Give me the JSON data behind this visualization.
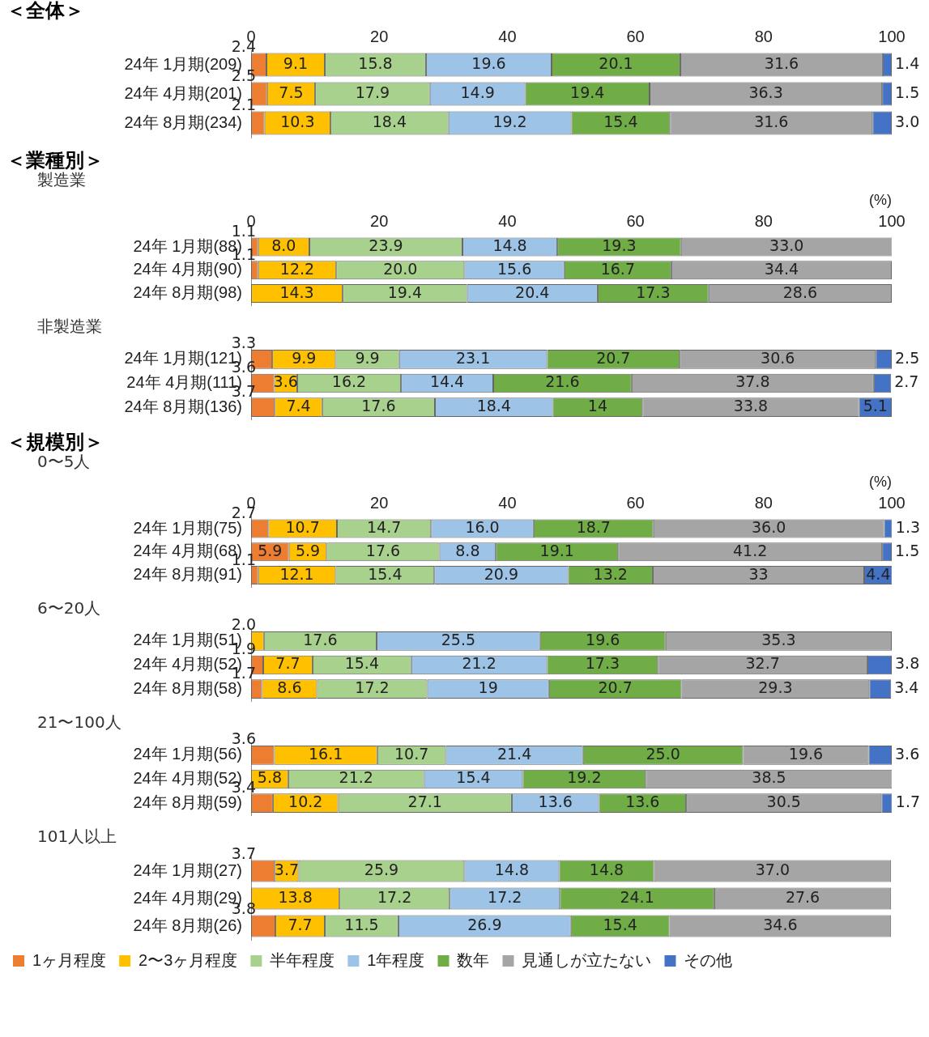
{
  "chart_data": [
    {
      "type": "bar",
      "orientation": "horizontal",
      "stacked": true,
      "title": "＜全体＞",
      "categories": [
        "24年 1月期(209)",
        "24年 4月期(201)",
        "24年 8月期(234)"
      ],
      "xlim": [
        0,
        100
      ],
      "xticks": [
        0,
        20,
        40,
        60,
        80,
        100
      ],
      "grid": false,
      "legend": false,
      "data_labels": true,
      "series": [
        {
          "color": "#ed7d31",
          "values": [
            2.4,
            2.5,
            2.1
          ],
          "value_labels": [
            "2.4",
            "2.5",
            "2.1"
          ]
        },
        {
          "color": "#ffc000",
          "values": [
            9.1,
            7.5,
            10.3
          ],
          "value_labels": [
            "9.1",
            "7.5",
            "10.3"
          ]
        },
        {
          "color": "#a9d18e",
          "values": [
            15.8,
            17.9,
            18.4
          ],
          "value_labels": [
            "15.8",
            "17.9",
            "18.4"
          ]
        },
        {
          "color": "#9dc3e6",
          "values": [
            19.6,
            14.9,
            19.2
          ],
          "value_labels": [
            "19.6",
            "14.9",
            "19.2"
          ]
        },
        {
          "color": "#70ad47",
          "values": [
            20.1,
            19.4,
            15.4
          ],
          "value_labels": [
            "20.1",
            "19.4",
            "15.4"
          ]
        },
        {
          "color": "#a5a5a5",
          "values": [
            31.6,
            36.3,
            31.6
          ],
          "value_labels": [
            "31.6",
            "36.3",
            "31.6"
          ]
        },
        {
          "color": "#4472c4",
          "values": [
            1.4,
            1.5,
            3.0
          ],
          "value_labels": [
            "1.4",
            "1.5",
            "3.0"
          ]
        }
      ]
    },
    {
      "type": "bar",
      "orientation": "horizontal",
      "stacked": true,
      "title": "＜業種別＞",
      "subtitle": "製造業",
      "xlabel": "(%)",
      "categories": [
        "24年 1月期(88)",
        "24年 4月期(90)",
        "24年 8月期(98)"
      ],
      "xlim": [
        0,
        100
      ],
      "xticks": [
        0,
        20,
        40,
        60,
        80,
        100
      ],
      "grid": false,
      "legend": false,
      "data_labels": true,
      "series": [
        {
          "color": "#ed7d31",
          "values": [
            1.1,
            1.1,
            null
          ],
          "value_labels": [
            "1.1",
            "1.1",
            null
          ]
        },
        {
          "color": "#ffc000",
          "values": [
            8.0,
            12.2,
            14.3
          ],
          "value_labels": [
            "8.0",
            "12.2",
            "14.3"
          ]
        },
        {
          "color": "#a9d18e",
          "values": [
            23.9,
            20.0,
            19.4
          ],
          "value_labels": [
            "23.9",
            "20.0",
            "19.4"
          ]
        },
        {
          "color": "#9dc3e6",
          "values": [
            14.8,
            15.6,
            20.4
          ],
          "value_labels": [
            "14.8",
            "15.6",
            "20.4"
          ]
        },
        {
          "color": "#70ad47",
          "values": [
            19.3,
            16.7,
            17.3
          ],
          "value_labels": [
            "19.3",
            "16.7",
            "17.3"
          ]
        },
        {
          "color": "#a5a5a5",
          "values": [
            33.0,
            34.4,
            28.6
          ],
          "value_labels": [
            "33.0",
            "34.4",
            "28.6"
          ]
        }
      ]
    },
    {
      "type": "bar",
      "orientation": "horizontal",
      "stacked": true,
      "subtitle": "非製造業",
      "categories": [
        "24年 1月期(121)",
        "24年 4月期(111)",
        "24年 8月期(136)"
      ],
      "xlim": [
        0,
        100
      ],
      "xticks": [
        0,
        20,
        40,
        60,
        80,
        100
      ],
      "tick_labels": "y",
      "grid": false,
      "legend": false,
      "data_labels": true,
      "series": [
        {
          "color": "#ed7d31",
          "values": [
            3.3,
            3.6,
            3.7
          ],
          "value_labels": [
            "3.3",
            "3.6",
            "3.7"
          ]
        },
        {
          "color": "#ffc000",
          "values": [
            9.9,
            3.6,
            7.4
          ],
          "value_labels": [
            "9.9",
            "3.6",
            "7.4"
          ]
        },
        {
          "color": "#a9d18e",
          "values": [
            9.9,
            16.2,
            17.6
          ],
          "value_labels": [
            "9.9",
            "16.2",
            "17.6"
          ]
        },
        {
          "color": "#9dc3e6",
          "values": [
            23.1,
            14.4,
            18.4
          ],
          "value_labels": [
            "23.1",
            "14.4",
            "18.4"
          ]
        },
        {
          "color": "#70ad47",
          "values": [
            20.7,
            21.6,
            14
          ],
          "value_labels": [
            "20.7",
            "21.6",
            "14"
          ]
        },
        {
          "color": "#a5a5a5",
          "values": [
            30.6,
            37.8,
            33.8
          ],
          "value_labels": [
            "30.6",
            "37.8",
            "33.8"
          ]
        },
        {
          "color": "#4472c4",
          "values": [
            2.5,
            2.7,
            5.1
          ],
          "value_labels": [
            "2.5",
            "2.7",
            "5.1"
          ]
        }
      ]
    },
    {
      "type": "bar",
      "orientation": "horizontal",
      "stacked": true,
      "title": "＜規模別＞",
      "subtitle": "0〜5人",
      "xlabel": "(%)",
      "categories": [
        "24年 1月期(75)",
        "24年 4月期(68)",
        "24年 8月期(91)"
      ],
      "xlim": [
        0,
        100
      ],
      "xticks": [
        0,
        20,
        40,
        60,
        80,
        100
      ],
      "grid": false,
      "legend": false,
      "data_labels": true,
      "series": [
        {
          "color": "#ed7d31",
          "values": [
            2.7,
            5.9,
            1.1
          ],
          "value_labels": [
            "2.7",
            "5.9",
            "1.1"
          ]
        },
        {
          "color": "#ffc000",
          "values": [
            10.7,
            5.9,
            12.1
          ],
          "value_labels": [
            "10.7",
            "5.9",
            "12.1"
          ]
        },
        {
          "color": "#a9d18e",
          "values": [
            14.7,
            17.6,
            15.4
          ],
          "value_labels": [
            "14.7",
            "17.6",
            "15.4"
          ]
        },
        {
          "color": "#9dc3e6",
          "values": [
            16.0,
            8.8,
            20.9
          ],
          "value_labels": [
            "16.0",
            "8.8",
            "20.9"
          ]
        },
        {
          "color": "#70ad47",
          "values": [
            18.7,
            19.1,
            13.2
          ],
          "value_labels": [
            "18.7",
            "19.1",
            "13.2"
          ]
        },
        {
          "color": "#a5a5a5",
          "values": [
            36.0,
            41.2,
            33
          ],
          "value_labels": [
            "36.0",
            "41.2",
            "33"
          ]
        },
        {
          "color": "#4472c4",
          "values": [
            1.3,
            1.5,
            4.4
          ],
          "value_labels": [
            "1.3",
            "1.5",
            "4.4"
          ]
        }
      ]
    },
    {
      "type": "bar",
      "orientation": "horizontal",
      "stacked": true,
      "subtitle": "6〜20人",
      "categories": [
        "24年 1月期(51)",
        "24年 4月期(52)",
        "24年 8月期(58)"
      ],
      "xlim": [
        0,
        100
      ],
      "xticks": [
        0,
        20,
        40,
        60,
        80,
        100
      ],
      "tick_labels": "y",
      "grid": false,
      "legend": false,
      "data_labels": true,
      "series": [
        {
          "color": "#ed7d31",
          "values": [
            null,
            1.9,
            1.7
          ],
          "value_labels": [
            null,
            "1.9",
            "1.7"
          ]
        },
        {
          "color": "#ffc000",
          "values": [
            2.0,
            7.7,
            8.6
          ],
          "value_labels": [
            "2.0",
            "7.7",
            "8.6"
          ]
        },
        {
          "color": "#a9d18e",
          "values": [
            17.6,
            15.4,
            17.2
          ],
          "value_labels": [
            "17.6",
            "15.4",
            "17.2"
          ]
        },
        {
          "color": "#9dc3e6",
          "values": [
            25.5,
            21.2,
            19
          ],
          "value_labels": [
            "25.5",
            "21.2",
            "19"
          ]
        },
        {
          "color": "#70ad47",
          "values": [
            19.6,
            17.3,
            20.7
          ],
          "value_labels": [
            "19.6",
            "17.3",
            "20.7"
          ]
        },
        {
          "color": "#a5a5a5",
          "values": [
            35.3,
            32.7,
            29.3
          ],
          "value_labels": [
            "35.3",
            "32.7",
            "29.3"
          ]
        },
        {
          "color": "#4472c4",
          "values": [
            null,
            3.8,
            3.4
          ],
          "value_labels": [
            null,
            "3.8",
            "3.4"
          ]
        }
      ]
    },
    {
      "type": "bar",
      "orientation": "horizontal",
      "stacked": true,
      "subtitle": "21〜100人",
      "categories": [
        "24年 1月期(56)",
        "24年 4月期(52)",
        "24年 8月期(59)"
      ],
      "xlim": [
        0,
        100
      ],
      "xticks": [
        0,
        20,
        40,
        60,
        80,
        100
      ],
      "tick_labels": "y",
      "grid": false,
      "legend": false,
      "data_labels": true,
      "series": [
        {
          "color": "#ed7d31",
          "values": [
            3.6,
            null,
            3.4
          ],
          "value_labels": [
            "3.6",
            null,
            "3.4"
          ]
        },
        {
          "color": "#ffc000",
          "values": [
            16.1,
            5.8,
            10.2
          ],
          "value_labels": [
            "16.1",
            "5.8",
            "10.2"
          ]
        },
        {
          "color": "#a9d18e",
          "values": [
            10.7,
            21.2,
            27.1
          ],
          "value_labels": [
            "10.7",
            "21.2",
            "27.1"
          ]
        },
        {
          "color": "#9dc3e6",
          "values": [
            21.4,
            15.4,
            13.6
          ],
          "value_labels": [
            "21.4",
            "15.4",
            "13.6"
          ]
        },
        {
          "color": "#70ad47",
          "values": [
            25.0,
            19.2,
            13.6
          ],
          "value_labels": [
            "25.0",
            "19.2",
            "13.6"
          ]
        },
        {
          "color": "#a5a5a5",
          "values": [
            19.6,
            38.5,
            30.5
          ],
          "value_labels": [
            "19.6",
            "38.5",
            "30.5"
          ]
        },
        {
          "color": "#4472c4",
          "values": [
            3.6,
            null,
            1.7
          ],
          "value_labels": [
            "3.6",
            null,
            "1.7"
          ]
        }
      ]
    },
    {
      "type": "bar",
      "orientation": "horizontal",
      "stacked": true,
      "subtitle": "101人以上",
      "categories": [
        "24年 1月期(27)",
        "24年 4月期(29)",
        "24年 8月期(26)"
      ],
      "xlim": [
        0,
        100
      ],
      "xticks": [
        0,
        20,
        40,
        60,
        80,
        100
      ],
      "tick_labels": "y",
      "grid": false,
      "legend": "bottom",
      "data_labels": true,
      "series": [
        {
          "name": "1ヶ月程度",
          "color": "#ed7d31",
          "values": [
            3.7,
            null,
            3.8
          ],
          "value_labels": [
            "3.7",
            null,
            "3.8"
          ]
        },
        {
          "name": "2〜3ヶ月程度",
          "color": "#ffc000",
          "values": [
            3.7,
            13.8,
            7.7
          ],
          "value_labels": [
            "3.7",
            "13.8",
            "7.7"
          ]
        },
        {
          "name": "半年程度",
          "color": "#a9d18e",
          "values": [
            25.9,
            17.2,
            11.5
          ],
          "value_labels": [
            "25.9",
            "17.2",
            "11.5"
          ]
        },
        {
          "name": "1年程度",
          "color": "#9dc3e6",
          "values": [
            14.8,
            17.2,
            26.9
          ],
          "value_labels": [
            "14.8",
            "17.2",
            "26.9"
          ]
        },
        {
          "name": "数年",
          "color": "#70ad47",
          "values": [
            14.8,
            24.1,
            15.4
          ],
          "value_labels": [
            "14.8",
            "24.1",
            "15.4"
          ]
        },
        {
          "name": "見通しが立たない",
          "color": "#a5a5a5",
          "values": [
            37.0,
            27.6,
            34.6
          ],
          "value_labels": [
            "37.0",
            "27.6",
            "34.6"
          ]
        },
        {
          "name": "その他",
          "color": "#4472c4",
          "values": [
            null,
            null,
            null
          ],
          "value_labels": [
            null,
            null,
            null
          ]
        }
      ]
    }
  ]
}
